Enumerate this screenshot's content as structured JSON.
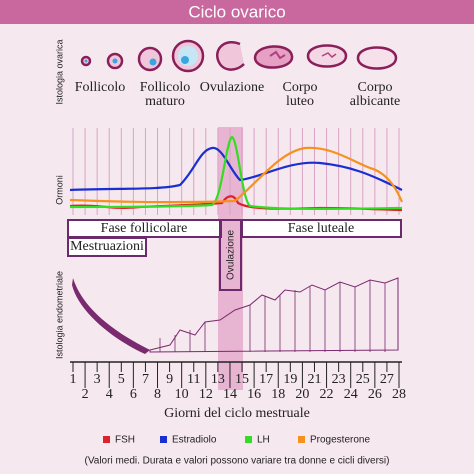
{
  "title": "Ciclo ovarico",
  "side_labels": [
    "Istologia ovarica",
    "Ormoni",
    "Istologia endometriale"
  ],
  "stages": [
    [
      "Follicolo"
    ],
    [
      "Follicolo",
      "maturo"
    ],
    [
      "Ovulazione"
    ],
    [
      "Corpo",
      "luteo"
    ],
    [
      "Corpo",
      "albicante"
    ]
  ],
  "phases": {
    "follicular": "Fase follicolare",
    "luteal": "Fase luteale",
    "menstruation": "Mestruazioni",
    "ovulation": "Ovulazione"
  },
  "days": [
    1,
    2,
    3,
    4,
    5,
    6,
    7,
    8,
    9,
    10,
    11,
    12,
    13,
    14,
    15,
    16,
    17,
    18,
    19,
    20,
    21,
    22,
    23,
    24,
    25,
    26,
    27,
    28
  ],
  "x_label": "Giorni del ciclo mestruale",
  "legend": [
    {
      "name": "FSH",
      "color": "#e0202a"
    },
    {
      "name": "Estradiolo",
      "color": "#1a2fd0"
    },
    {
      "name": "LH",
      "color": "#33dd22"
    },
    {
      "name": "Progesterone",
      "color": "#f5921e"
    }
  ],
  "note": "(Valori medi. Durata e valori possono variare tra donne e cicli diversi)"
}
